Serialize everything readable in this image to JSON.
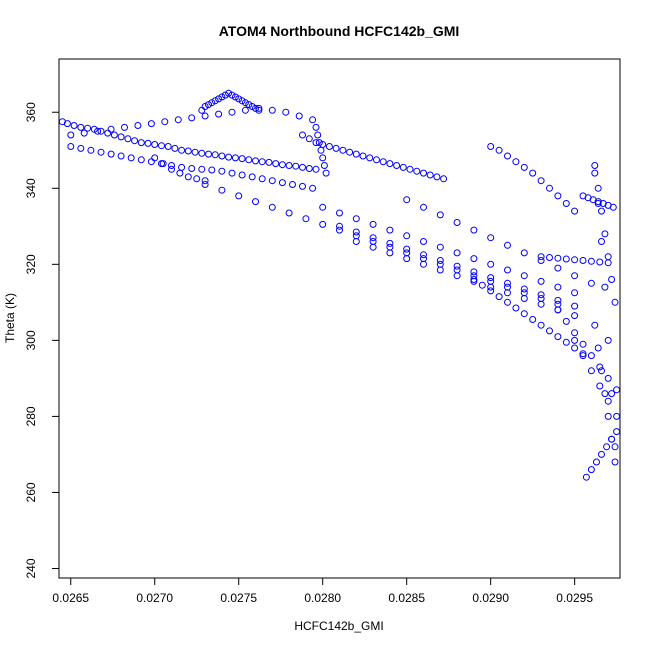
{
  "chart_data": {
    "type": "scatter",
    "title": "ATOM4 Northbound HCFC142b_GMI",
    "xlabel": "HCFC142b_GMI",
    "ylabel": "Theta (K)",
    "xlim": [
      0.02643,
      0.02977
    ],
    "ylim": [
      237.5,
      374.0
    ],
    "xticks": [
      "0.0265",
      "0.0270",
      "0.0275",
      "0.0280",
      "0.0285",
      "0.0290",
      "0.0295"
    ],
    "yticks": [
      "240",
      "260",
      "280",
      "300",
      "320",
      "340",
      "360"
    ],
    "grid": false,
    "marker": "open-circle",
    "color": "#0000ff",
    "series": [
      {
        "name": "",
        "x": [
          0.02645,
          0.02648,
          0.02652,
          0.02656,
          0.0266,
          0.02664,
          0.02668,
          0.02672,
          0.02676,
          0.0268,
          0.02684,
          0.02688,
          0.02692,
          0.02696,
          0.027,
          0.02704,
          0.02708,
          0.02712,
          0.02716,
          0.0272,
          0.02724,
          0.02728,
          0.02732,
          0.02736,
          0.0274,
          0.02744,
          0.02748,
          0.02752,
          0.02756,
          0.0276,
          0.02764,
          0.02768,
          0.02772,
          0.02776,
          0.0278,
          0.02784,
          0.02788,
          0.02792,
          0.02796,
          0.0265,
          0.02656,
          0.02662,
          0.02668,
          0.02674,
          0.0268,
          0.02686,
          0.02692,
          0.02698,
          0.02704,
          0.0271,
          0.02716,
          0.02722,
          0.02728,
          0.02734,
          0.0274,
          0.02746,
          0.02752,
          0.02758,
          0.02764,
          0.0277,
          0.02776,
          0.02782,
          0.02788,
          0.02794,
          0.0265,
          0.02658,
          0.02666,
          0.02674,
          0.02682,
          0.0269,
          0.02698,
          0.02706,
          0.02714,
          0.02722,
          0.0273,
          0.02738,
          0.02746,
          0.02754,
          0.02762,
          0.0277,
          0.02778,
          0.02786,
          0.02794,
          0.027,
          0.02705,
          0.0271,
          0.02715,
          0.0272,
          0.02725,
          0.0273,
          0.02728,
          0.0273,
          0.02732,
          0.02734,
          0.02736,
          0.02738,
          0.0274,
          0.02742,
          0.02744,
          0.02746,
          0.02748,
          0.0275,
          0.02752,
          0.02754,
          0.02756,
          0.02758,
          0.0276,
          0.02762,
          0.02796,
          0.02797,
          0.02798,
          0.02799,
          0.028,
          0.02801,
          0.02802,
          0.02788,
          0.02792,
          0.02796,
          0.028,
          0.02804,
          0.02808,
          0.02812,
          0.02816,
          0.0282,
          0.02824,
          0.02828,
          0.02832,
          0.02836,
          0.0284,
          0.02844,
          0.02848,
          0.02852,
          0.02856,
          0.0286,
          0.02864,
          0.02868,
          0.02872,
          0.0273,
          0.0274,
          0.0275,
          0.0276,
          0.0277,
          0.0278,
          0.0279,
          0.028,
          0.0281,
          0.0282,
          0.0283,
          0.0284,
          0.0285,
          0.0286,
          0.0287,
          0.0288,
          0.0289,
          0.029,
          0.0291,
          0.0292,
          0.0293,
          0.0294,
          0.028,
          0.0281,
          0.0282,
          0.0283,
          0.0284,
          0.0285,
          0.0286,
          0.0287,
          0.0288,
          0.0289,
          0.029,
          0.0291,
          0.0292,
          0.0293,
          0.0294,
          0.0295,
          0.0281,
          0.0282,
          0.0283,
          0.0284,
          0.0285,
          0.0286,
          0.0287,
          0.0288,
          0.0289,
          0.029,
          0.0291,
          0.0292,
          0.0293,
          0.0294,
          0.0295,
          0.0282,
          0.0283,
          0.0284,
          0.0285,
          0.0286,
          0.0287,
          0.0288,
          0.0289,
          0.029,
          0.0291,
          0.0292,
          0.0293,
          0.0294,
          0.0295,
          0.0285,
          0.0286,
          0.0287,
          0.0288,
          0.0289,
          0.029,
          0.0291,
          0.0292,
          0.0293,
          0.0294,
          0.0295,
          0.0296,
          0.029,
          0.02905,
          0.0291,
          0.02915,
          0.0292,
          0.02925,
          0.0293,
          0.02935,
          0.0294,
          0.02945,
          0.0295,
          0.0289,
          0.02895,
          0.029,
          0.02905,
          0.0291,
          0.02915,
          0.0292,
          0.02925,
          0.0293,
          0.02935,
          0.0294,
          0.02945,
          0.0295,
          0.02955,
          0.0293,
          0.02935,
          0.0294,
          0.02945,
          0.0295,
          0.02955,
          0.0296,
          0.02965,
          0.0297,
          0.02955,
          0.02958,
          0.02961,
          0.02964,
          0.02967,
          0.0297,
          0.02973,
          0.02962,
          0.02964,
          0.02966,
          0.02968,
          0.0297,
          0.02972,
          0.02974,
          0.02962,
          0.02964,
          0.02966,
          0.02968,
          0.0297,
          0.02972,
          0.02974,
          0.02962,
          0.02964,
          0.02966,
          0.02968,
          0.0297,
          0.02972,
          0.02974,
          0.0295,
          0.02955,
          0.0296,
          0.02965,
          0.0297,
          0.02975,
          0.02957,
          0.0296,
          0.02963,
          0.02966,
          0.02969,
          0.02972,
          0.02975,
          0.0294,
          0.02945,
          0.0295,
          0.02955,
          0.0296,
          0.02965,
          0.0297,
          0.02975
        ],
        "y": [
          357.5,
          357.0,
          356.5,
          356.0,
          355.8,
          355.5,
          355.0,
          354.5,
          354.0,
          353.5,
          353.0,
          352.5,
          352.0,
          351.8,
          351.5,
          351.2,
          351.0,
          350.5,
          350.0,
          349.8,
          349.5,
          349.2,
          349.0,
          348.8,
          348.5,
          348.2,
          348.0,
          347.8,
          347.5,
          347.2,
          347.0,
          346.8,
          346.5,
          346.2,
          346.0,
          345.8,
          345.5,
          345.2,
          345.0,
          351.0,
          350.5,
          350.0,
          349.5,
          349.0,
          348.5,
          348.0,
          347.5,
          347.0,
          346.5,
          346.0,
          345.5,
          345.2,
          345.0,
          344.8,
          344.5,
          344.0,
          343.5,
          343.0,
          342.5,
          342.0,
          341.5,
          341.0,
          340.5,
          340.0,
          354.0,
          354.5,
          355.0,
          355.5,
          356.0,
          356.5,
          357.0,
          357.5,
          358.0,
          358.5,
          359.0,
          359.5,
          360.0,
          360.5,
          361.0,
          360.5,
          360.0,
          359.0,
          358.0,
          348.0,
          346.5,
          345.0,
          344.0,
          343.0,
          342.5,
          342.0,
          360.5,
          361.5,
          362.0,
          362.5,
          363.0,
          363.5,
          364.0,
          364.5,
          365.0,
          364.5,
          364.0,
          363.5,
          363.0,
          362.5,
          362.0,
          361.5,
          361.0,
          360.5,
          356.0,
          354.0,
          352.0,
          350.0,
          348.0,
          346.0,
          344.0,
          354.0,
          353.0,
          352.0,
          351.5,
          351.0,
          350.5,
          350.0,
          349.5,
          349.0,
          348.5,
          348.0,
          347.5,
          347.0,
          346.5,
          346.0,
          345.5,
          345.0,
          344.5,
          344.0,
          343.5,
          343.0,
          342.5,
          341.0,
          339.5,
          338.0,
          336.5,
          335.0,
          333.5,
          332.0,
          330.5,
          329.0,
          327.5,
          326.0,
          324.5,
          323.0,
          321.5,
          320.0,
          318.5,
          317.0,
          315.5,
          314.0,
          312.5,
          311.0,
          309.5,
          335.0,
          333.5,
          332.0,
          330.5,
          329.0,
          327.5,
          326.0,
          324.5,
          323.0,
          321.5,
          320.0,
          318.5,
          317.0,
          315.5,
          314.0,
          312.5,
          330.0,
          328.5,
          327.0,
          325.5,
          324.0,
          322.5,
          321.0,
          319.5,
          318.0,
          316.5,
          315.0,
          313.5,
          312.0,
          310.5,
          309.0,
          326.0,
          324.5,
          323.0,
          321.5,
          320.0,
          318.5,
          317.0,
          315.5,
          314.0,
          312.5,
          311.0,
          309.5,
          308.0,
          306.5,
          337.0,
          335.0,
          333.0,
          331.0,
          329.0,
          327.0,
          325.0,
          323.0,
          321.0,
          319.0,
          317.0,
          315.0,
          351.0,
          350.0,
          348.5,
          347.0,
          345.5,
          344.0,
          342.0,
          340.0,
          338.0,
          336.0,
          334.0,
          316.0,
          314.5,
          313.0,
          311.5,
          310.0,
          308.5,
          307.0,
          305.5,
          304.0,
          302.5,
          301.0,
          299.5,
          298.0,
          296.5,
          322.0,
          321.8,
          321.6,
          321.4,
          321.2,
          321.0,
          320.8,
          320.6,
          320.4,
          338.0,
          337.5,
          337.0,
          336.5,
          336.0,
          335.5,
          335.0,
          346.0,
          340.0,
          334.0,
          328.0,
          322.0,
          316.0,
          310.0,
          304.0,
          298.0,
          292.0,
          286.0,
          280.0,
          274.0,
          268.0,
          344.0,
          336.0,
          326.0,
          314.0,
          300.0,
          286.0,
          272.0,
          300.0,
          296.0,
          292.0,
          288.0,
          284.0,
          280.0,
          264.0,
          266.0,
          268.0,
          270.0,
          272.0,
          274.0,
          276.0,
          308.0,
          305.0,
          302.0,
          299.0,
          296.0,
          293.0,
          290.0,
          287.0
        ]
      }
    ]
  }
}
